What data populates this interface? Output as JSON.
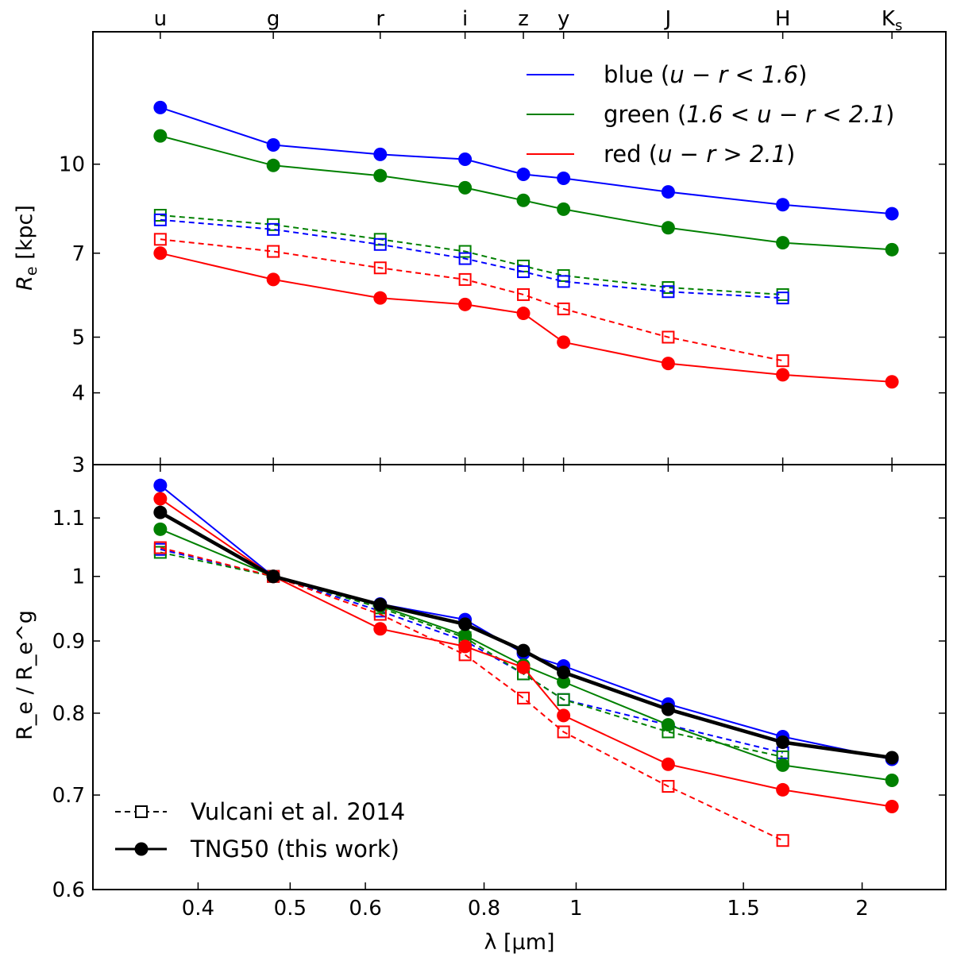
{
  "chart_data": [
    {
      "type": "line",
      "panel": "top",
      "title": "",
      "xlabel": "",
      "ylabel": "R_e [kpc]",
      "ylabel_main": "R",
      "ylabel_sub": "e",
      "ylabel_unit": "[kpc]",
      "xscale": "log",
      "yscale": "log",
      "xlim": [
        0.31,
        2.45
      ],
      "ylim": [
        3,
        17
      ],
      "yticks": [
        3,
        4,
        5,
        7,
        10
      ],
      "ytick_labels": [
        "3",
        "4",
        "5",
        "7",
        "10"
      ],
      "top_band_labels": [
        "u",
        "g",
        "r",
        "i",
        "z",
        "y",
        "J",
        "H",
        "K"
      ],
      "top_band_sub_last": "s",
      "band_wavelengths": [
        0.365,
        0.48,
        0.622,
        0.764,
        0.88,
        0.97,
        1.25,
        1.65,
        2.15
      ],
      "legend_position": "top-right",
      "legend": [
        {
          "series": "blue",
          "pre": "blue (",
          "math": "u − r < 1.6",
          "post": ")"
        },
        {
          "series": "green",
          "pre": "green (",
          "math": "1.6 < u − r < 2.1",
          "post": ")"
        },
        {
          "series": "red",
          "pre": "red (",
          "math": "u − r > 2.1",
          "post": ")"
        }
      ],
      "series": [
        {
          "name": "blue TNG50",
          "key": "blue",
          "style": "solid",
          "marker": "filled-circle",
          "x": [
            0.365,
            0.48,
            0.622,
            0.764,
            0.88,
            0.97,
            1.25,
            1.65,
            2.15
          ],
          "values": [
            12.55,
            10.8,
            10.4,
            10.2,
            9.6,
            9.45,
            8.95,
            8.5,
            8.2
          ]
        },
        {
          "name": "green TNG50",
          "key": "green",
          "style": "solid",
          "marker": "filled-circle",
          "x": [
            0.365,
            0.48,
            0.622,
            0.764,
            0.88,
            0.97,
            1.25,
            1.65,
            2.15
          ],
          "values": [
            11.2,
            9.95,
            9.55,
            9.1,
            8.65,
            8.35,
            7.75,
            7.3,
            7.1
          ]
        },
        {
          "name": "red TNG50",
          "key": "red",
          "style": "solid",
          "marker": "filled-circle",
          "x": [
            0.365,
            0.48,
            0.622,
            0.764,
            0.88,
            0.97,
            1.25,
            1.65,
            2.15
          ],
          "values": [
            7.0,
            6.3,
            5.85,
            5.7,
            5.5,
            4.9,
            4.5,
            4.3,
            4.18
          ]
        },
        {
          "name": "green Vulcani et al. 2014",
          "key": "green",
          "style": "dashed",
          "marker": "open-square",
          "x": [
            0.365,
            0.48,
            0.622,
            0.764,
            0.88,
            0.97,
            1.25,
            1.65
          ],
          "values": [
            8.15,
            7.85,
            7.4,
            7.05,
            6.65,
            6.4,
            6.1,
            5.93
          ]
        },
        {
          "name": "blue Vulcani et al. 2014",
          "key": "blue",
          "style": "dashed",
          "marker": "open-square",
          "x": [
            0.365,
            0.48,
            0.622,
            0.764,
            0.88,
            0.97,
            1.25,
            1.65
          ],
          "values": [
            8.0,
            7.7,
            7.25,
            6.85,
            6.5,
            6.25,
            6.0,
            5.85
          ]
        },
        {
          "name": "red Vulcani et al. 2014",
          "key": "red",
          "style": "dashed",
          "marker": "open-square",
          "x": [
            0.365,
            0.48,
            0.622,
            0.764,
            0.88,
            0.97,
            1.25,
            1.65
          ],
          "values": [
            7.4,
            7.05,
            6.6,
            6.3,
            5.93,
            5.6,
            5.0,
            4.55
          ]
        }
      ]
    },
    {
      "type": "line",
      "panel": "bottom",
      "title": "",
      "xlabel": "λ [μm]",
      "ylabel": "R_e / R_e^g",
      "xscale": "log",
      "yscale": "log",
      "xlim": [
        0.31,
        2.45
      ],
      "ylim": [
        0.6,
        1.2
      ],
      "xticks": [
        0.4,
        0.5,
        0.6,
        0.8,
        1,
        1.5,
        2
      ],
      "xtick_labels": [
        "0.4",
        "0.5",
        "0.6",
        "0.8",
        "1",
        "1.5",
        "2"
      ],
      "yticks": [
        0.6,
        0.7,
        0.8,
        0.9,
        1,
        1.1
      ],
      "ytick_labels": [
        "0.6",
        "0.7",
        "0.8",
        "0.9",
        "1",
        "1.1"
      ],
      "legend_position": "bottom-left",
      "legend": [
        {
          "label": "Vulcani et al. 2014",
          "style": "dashed",
          "marker": "open-square"
        },
        {
          "label": "TNG50 (this work)",
          "style": "solid",
          "marker": "filled-circle"
        }
      ],
      "series": [
        {
          "name": "blue Vulcani et al. 2014",
          "key": "blue",
          "style": "dashed",
          "marker": "open-square",
          "x": [
            0.365,
            0.48,
            0.622,
            0.764,
            0.88,
            0.97,
            1.65
          ],
          "values": [
            1.045,
            1.0,
            0.945,
            0.9,
            0.853,
            0.818,
            0.75
          ]
        },
        {
          "name": "green Vulcani et al. 2014",
          "key": "green",
          "style": "dashed",
          "marker": "open-square",
          "x": [
            0.365,
            0.48,
            0.622,
            0.764,
            0.88,
            0.97,
            1.25,
            1.65
          ],
          "values": [
            1.04,
            1.0,
            0.95,
            0.905,
            0.853,
            0.818,
            0.776,
            0.745
          ]
        },
        {
          "name": "red Vulcani et al. 2014",
          "key": "red",
          "style": "dashed",
          "marker": "open-square",
          "x": [
            0.365,
            0.48,
            0.622,
            0.764,
            0.88,
            0.97,
            1.25,
            1.65
          ],
          "values": [
            1.048,
            1.0,
            0.94,
            0.88,
            0.82,
            0.776,
            0.71,
            0.65
          ]
        },
        {
          "name": "blue TNG50",
          "key": "blue",
          "style": "solid",
          "marker": "filled-circle",
          "x": [
            0.365,
            0.48,
            0.622,
            0.764,
            0.88,
            0.97,
            1.25,
            1.65,
            2.15
          ],
          "values": [
            1.16,
            1.0,
            0.956,
            0.932,
            0.882,
            0.864,
            0.812,
            0.77,
            0.742
          ]
        },
        {
          "name": "green TNG50",
          "key": "green",
          "style": "solid",
          "marker": "filled-circle",
          "x": [
            0.365,
            0.48,
            0.622,
            0.764,
            0.88,
            0.97,
            1.25,
            1.65,
            2.15
          ],
          "values": [
            1.08,
            1.0,
            0.953,
            0.908,
            0.865,
            0.842,
            0.785,
            0.735,
            0.717
          ]
        },
        {
          "name": "red TNG50",
          "key": "red",
          "style": "solid",
          "marker": "filled-circle",
          "x": [
            0.365,
            0.48,
            0.622,
            0.764,
            0.88,
            0.97,
            1.25,
            1.65,
            2.15
          ],
          "values": [
            1.135,
            1.0,
            0.918,
            0.892,
            0.862,
            0.797,
            0.736,
            0.706,
            0.687
          ]
        },
        {
          "name": "all TNG50",
          "key": "black",
          "style": "solid-thick",
          "marker": "filled-circle",
          "x": [
            0.365,
            0.48,
            0.622,
            0.764,
            0.88,
            0.97,
            1.25,
            1.65,
            2.15
          ],
          "values": [
            1.11,
            1.0,
            0.955,
            0.925,
            0.886,
            0.855,
            0.805,
            0.763,
            0.744
          ]
        }
      ]
    }
  ],
  "colors": {
    "blue": "#0000ff",
    "green": "#008000",
    "red": "#ff0000",
    "black": "#000000"
  }
}
